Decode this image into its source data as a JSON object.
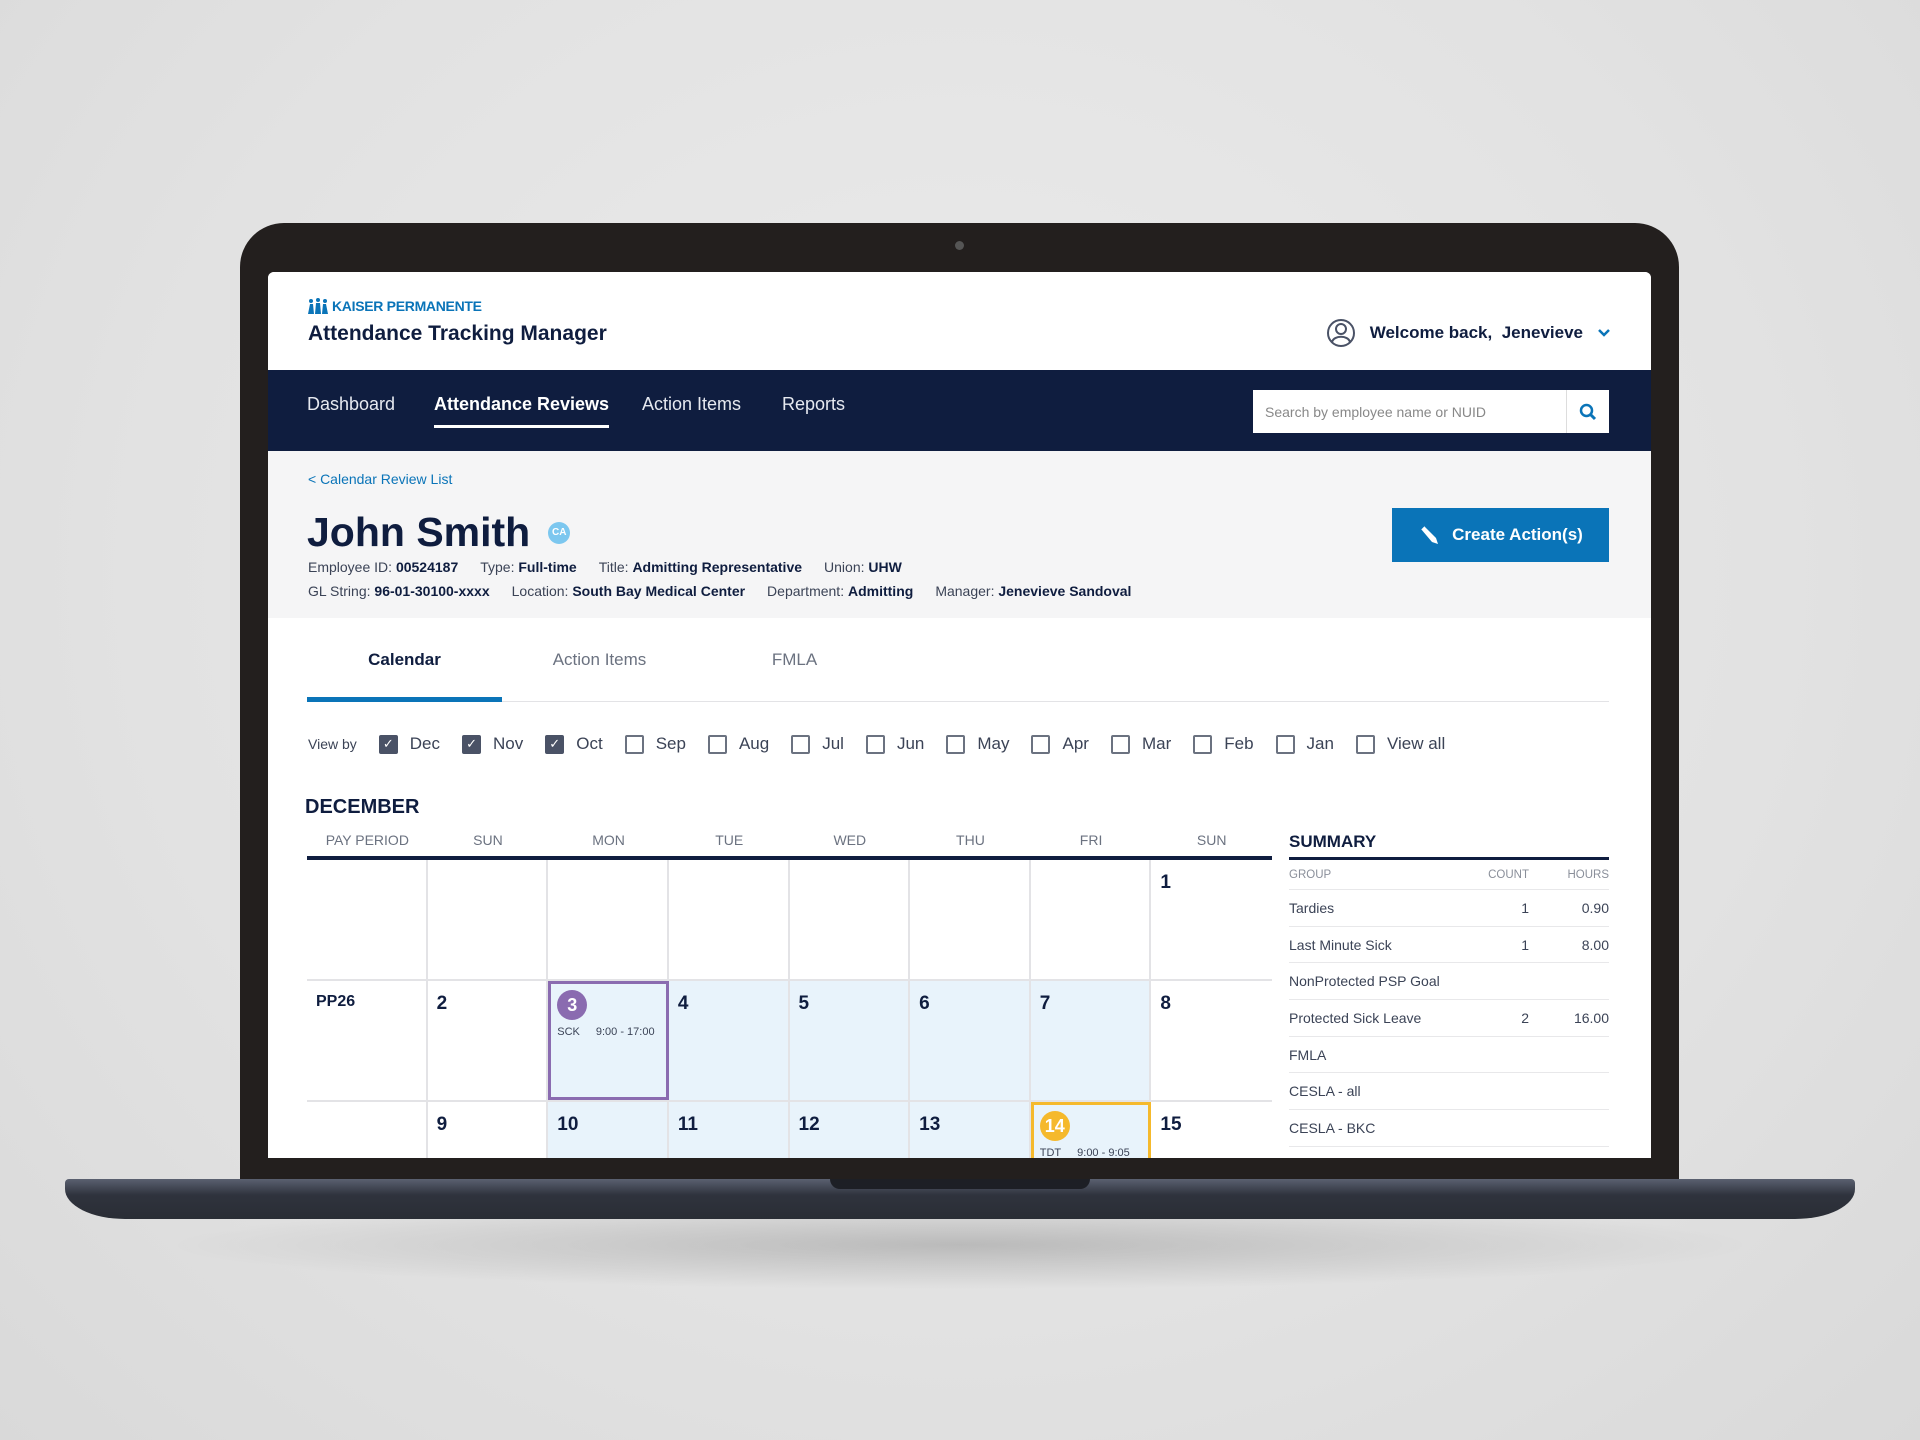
{
  "brand": {
    "logo_text": "KAISER PERMANENTE",
    "app_title": "Attendance Tracking Manager",
    "color": "#0a74b8"
  },
  "user": {
    "greeting": "Welcome back,",
    "name": "Jenevieve"
  },
  "nav": {
    "items": [
      {
        "label": "Dashboard"
      },
      {
        "label": "Attendance Reviews",
        "active": true
      },
      {
        "label": "Action Items"
      },
      {
        "label": "Reports"
      }
    ],
    "search_placeholder": "Search by employee name or NUID"
  },
  "employee": {
    "back_link": "< Calendar Review List",
    "name": "John Smith",
    "badge": "CA",
    "fields_row1": [
      {
        "label": "Employee ID:",
        "value": "00524187"
      },
      {
        "label": "Type:",
        "value": "Full-time"
      },
      {
        "label": "Title:",
        "value": "Admitting Representative"
      },
      {
        "label": "Union:",
        "value": "UHW"
      }
    ],
    "fields_row2": [
      {
        "label": "GL String:",
        "value": "96-01-30100-xxxx"
      },
      {
        "label": "Location:",
        "value": "South Bay Medical Center"
      },
      {
        "label": "Department:",
        "value": "Admitting"
      },
      {
        "label": "Manager:",
        "value": "Jenevieve Sandoval"
      }
    ],
    "create_button": "Create Action(s)"
  },
  "tabs": [
    {
      "label": "Calendar",
      "active": true
    },
    {
      "label": "Action Items"
    },
    {
      "label": "FMLA"
    }
  ],
  "view_by": {
    "label": "View by",
    "options": [
      {
        "label": "Dec",
        "checked": true
      },
      {
        "label": "Nov",
        "checked": true
      },
      {
        "label": "Oct",
        "checked": true
      },
      {
        "label": "Sep",
        "checked": false
      },
      {
        "label": "Aug",
        "checked": false
      },
      {
        "label": "Jul",
        "checked": false
      },
      {
        "label": "Jun",
        "checked": false
      },
      {
        "label": "May",
        "checked": false
      },
      {
        "label": "Apr",
        "checked": false
      },
      {
        "label": "Mar",
        "checked": false
      },
      {
        "label": "Feb",
        "checked": false
      },
      {
        "label": "Jan",
        "checked": false
      },
      {
        "label": "View all",
        "checked": false
      }
    ]
  },
  "calendar": {
    "month": "DECEMBER",
    "headers": [
      "PAY PERIOD",
      "SUN",
      "MON",
      "TUE",
      "WED",
      "THU",
      "FRI",
      "SUN"
    ],
    "rows": [
      {
        "pay_period": "",
        "days": [
          "",
          "",
          "",
          "",
          "",
          "",
          "1"
        ]
      },
      {
        "pay_period": "PP26",
        "days": [
          "2",
          "3",
          "4",
          "5",
          "6",
          "7",
          "8"
        ]
      },
      {
        "pay_period": "",
        "days": [
          "9",
          "10",
          "11",
          "12",
          "13",
          "14",
          "15"
        ]
      }
    ],
    "events": [
      {
        "day": "3",
        "code": "SCK",
        "time": "9:00 - 17:00",
        "color": "#8a6bb0"
      },
      {
        "day": "14",
        "code": "TDT",
        "time": "9:00 - 9:05",
        "color": "#f5b92c"
      }
    ]
  },
  "summary": {
    "title": "SUMMARY",
    "headers": [
      "GROUP",
      "COUNT",
      "HOURS"
    ],
    "rows": [
      [
        "Tardies",
        "1",
        "0.90"
      ],
      [
        "Last Minute Sick",
        "1",
        "8.00"
      ],
      [
        "NonProtected PSP Goal",
        "",
        ""
      ],
      [
        "Protected Sick Leave",
        "2",
        "16.00"
      ],
      [
        "FMLA",
        "",
        ""
      ],
      [
        "CESLA - all",
        "",
        ""
      ],
      [
        "CESLA - BKC",
        "",
        ""
      ]
    ]
  }
}
